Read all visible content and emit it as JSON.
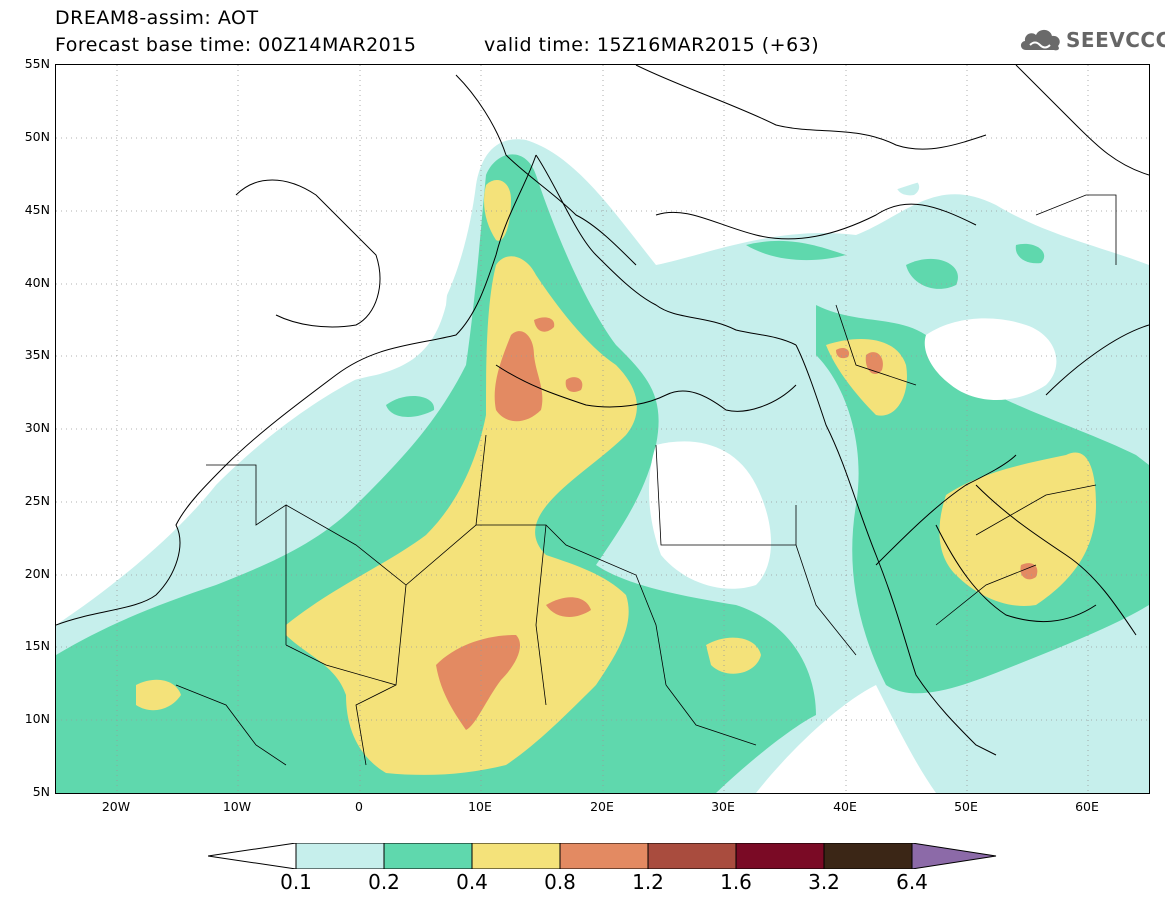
{
  "header": {
    "title_line1": "DREAM8-assim: AOT",
    "title_line2": "Forecast base time: 00Z14MAR2015",
    "valid_time": "valid time: 15Z16MAR2015 (+63)",
    "logo_text": "SEEVCCC"
  },
  "axes": {
    "lat_labels": [
      "55N",
      "50N",
      "45N",
      "40N",
      "35N",
      "30N",
      "25N",
      "20N",
      "15N",
      "10N",
      "5N"
    ],
    "lon_labels": [
      "20W",
      "10W",
      "0",
      "10E",
      "20E",
      "30E",
      "40E",
      "50E",
      "60E"
    ],
    "lat_range": [
      5,
      55
    ],
    "lon_range": [
      -25,
      65
    ],
    "grid": "dotted"
  },
  "colorbar": {
    "labels": [
      "0.1",
      "0.2",
      "0.4",
      "0.8",
      "1.2",
      "1.6",
      "3.2",
      "6.4"
    ],
    "colors": [
      "#ffffff",
      "#c6efec",
      "#5fd8ad",
      "#f4e27a",
      "#e38a62",
      "#a94c3e",
      "#7a0a25",
      "#3b2616",
      "#8c6aa8"
    ]
  },
  "legend_colors": {
    "c01": "#c6efec",
    "c02": "#5fd8ad",
    "c04": "#f4e27a",
    "c08": "#e38a62",
    "c12": "#a94c3e"
  }
}
